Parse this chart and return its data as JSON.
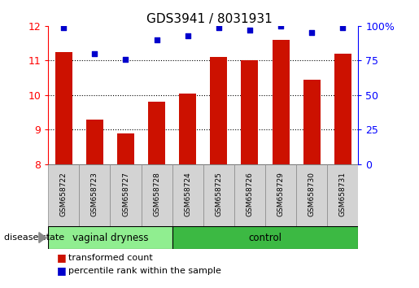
{
  "title": "GDS3941 / 8031931",
  "samples": [
    "GSM658722",
    "GSM658723",
    "GSM658727",
    "GSM658728",
    "GSM658724",
    "GSM658725",
    "GSM658726",
    "GSM658729",
    "GSM658730",
    "GSM658731"
  ],
  "red_values": [
    11.25,
    9.3,
    8.9,
    9.8,
    10.05,
    11.1,
    11.0,
    11.6,
    10.45,
    11.2
  ],
  "blue_values": [
    99,
    80,
    76,
    90,
    93,
    99,
    97,
    100,
    95,
    99
  ],
  "ylim_left": [
    8,
    12
  ],
  "ylim_right": [
    0,
    100
  ],
  "yticks_left": [
    8,
    9,
    10,
    11,
    12
  ],
  "yticks_right": [
    0,
    25,
    50,
    75,
    100
  ],
  "ytick_labels_right": [
    "0",
    "25",
    "50",
    "75",
    "100%"
  ],
  "bar_color": "#CC1100",
  "dot_color": "#0000CC",
  "group1_label": "vaginal dryness",
  "group2_label": "control",
  "group1_count": 4,
  "group2_count": 6,
  "disease_state_label": "disease state",
  "legend1": "transformed count",
  "legend2": "percentile rank within the sample",
  "bar_width": 0.55,
  "tick_label_bg": "#d3d3d3",
  "group_bg1": "#90EE90",
  "group_bg2": "#3CB943"
}
